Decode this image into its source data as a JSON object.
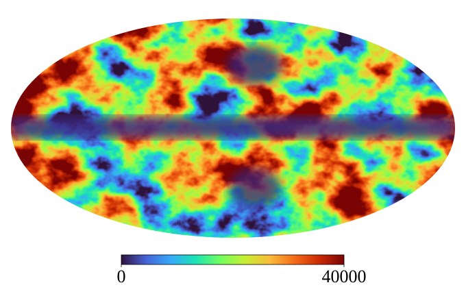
{
  "chart_data": {
    "type": "mollweide-map",
    "colormap": [
      "#30123b",
      "#4662d7",
      "#36aaf9",
      "#1ae4b6",
      "#72fe5e",
      "#c7ef34",
      "#fabb39",
      "#f66b19",
      "#ca2a04",
      "#7a0403"
    ],
    "clim": [
      0,
      40000
    ],
    "cticks": [
      0,
      40000
    ]
  }
}
